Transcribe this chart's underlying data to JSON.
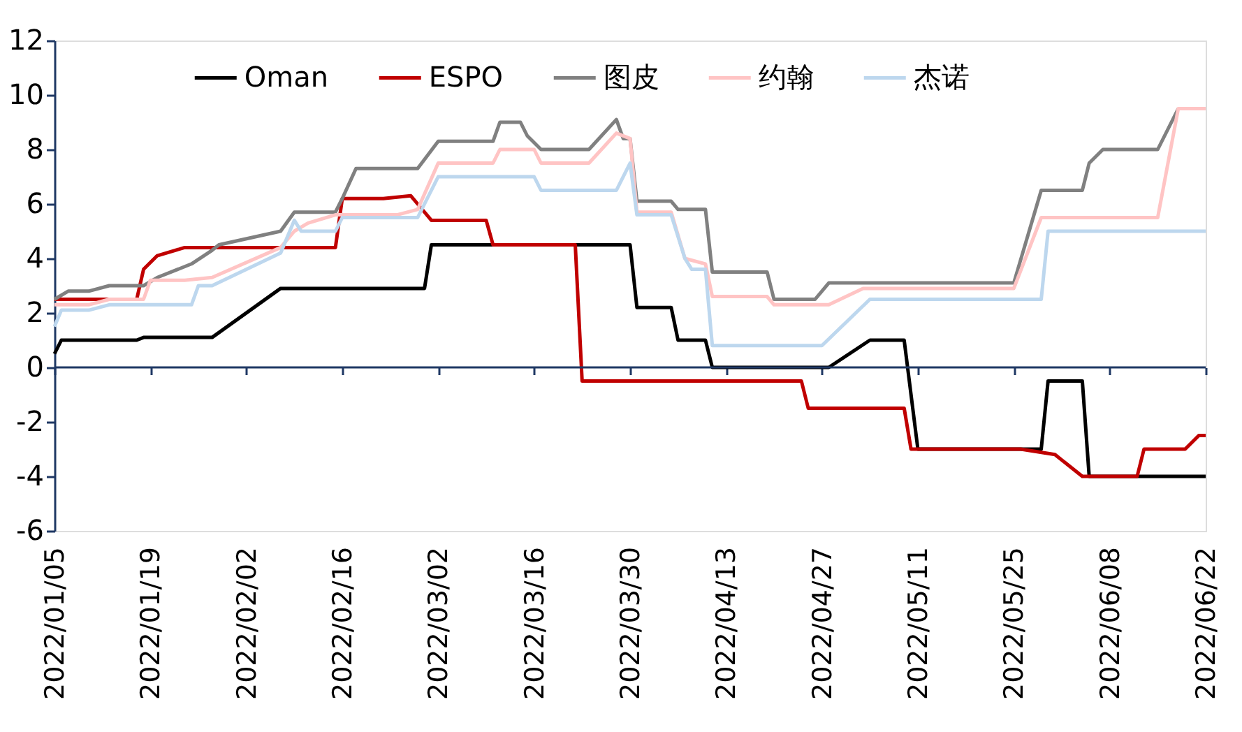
{
  "chart_data": {
    "type": "line",
    "xlim": [
      "2022-01-05",
      "2022-06-22"
    ],
    "xticks": [
      {
        "value": "2022-01-05",
        "label": "2022/01/05"
      },
      {
        "value": "2022-01-19",
        "label": "2022/01/19"
      },
      {
        "value": "2022-02-02",
        "label": "2022/02/02"
      },
      {
        "value": "2022-02-16",
        "label": "2022/02/16"
      },
      {
        "value": "2022-03-02",
        "label": "2022/03/02"
      },
      {
        "value": "2022-03-16",
        "label": "2022/03/16"
      },
      {
        "value": "2022-03-30",
        "label": "2022/03/30"
      },
      {
        "value": "2022-04-13",
        "label": "2022/04/13"
      },
      {
        "value": "2022-04-27",
        "label": "2022/04/27"
      },
      {
        "value": "2022-05-11",
        "label": "2022/05/11"
      },
      {
        "value": "2022-05-25",
        "label": "2022/05/25"
      },
      {
        "value": "2022-06-08",
        "label": "2022/06/08"
      },
      {
        "value": "2022-06-22",
        "label": "2022/06/22"
      }
    ],
    "ylim": [
      -6,
      12
    ],
    "yticks": [
      -6,
      -4,
      -2,
      0,
      2,
      4,
      6,
      8,
      10,
      12
    ],
    "ref_lines": [
      {
        "axis": "y",
        "value": 0,
        "color": "#1f3864",
        "line_style": "solid"
      }
    ],
    "grid": false,
    "legend": "top",
    "marker": "none",
    "line_style": "solid",
    "series": [
      {
        "name": "Oman",
        "color": "#000000",
        "x": [
          "2022-01-05",
          "2022-01-06",
          "2022-01-17",
          "2022-01-18",
          "2022-01-28",
          "2022-02-07",
          "2022-02-28",
          "2022-03-01",
          "2022-03-30",
          "2022-03-31",
          "2022-04-05",
          "2022-04-06",
          "2022-04-10",
          "2022-04-11",
          "2022-04-28",
          "2022-05-04",
          "2022-05-09",
          "2022-05-11",
          "2022-05-29",
          "2022-05-30",
          "2022-06-04",
          "2022-06-05",
          "2022-06-22"
        ],
        "values": [
          0.5,
          1.0,
          1.0,
          1.1,
          1.1,
          2.9,
          2.9,
          4.5,
          4.5,
          2.2,
          2.2,
          1.0,
          1.0,
          0,
          0,
          1.0,
          1.0,
          -3,
          -3,
          -0.5,
          -0.5,
          -4,
          -4
        ]
      },
      {
        "name": "ESPO",
        "color": "#c00000",
        "x": [
          "2022-01-05",
          "2022-01-17",
          "2022-01-18",
          "2022-01-20",
          "2022-01-24",
          "2022-02-15",
          "2022-02-16",
          "2022-02-22",
          "2022-02-26",
          "2022-02-27",
          "2022-03-01",
          "2022-03-09",
          "2022-03-10",
          "2022-03-22",
          "2022-03-23",
          "2022-04-24",
          "2022-04-25",
          "2022-05-09",
          "2022-05-10",
          "2022-05-26",
          "2022-05-31",
          "2022-06-04",
          "2022-06-12",
          "2022-06-13",
          "2022-06-19",
          "2022-06-21",
          "2022-06-22"
        ],
        "values": [
          2.5,
          2.5,
          3.6,
          4.1,
          4.4,
          4.4,
          6.2,
          6.2,
          6.3,
          6.0,
          5.4,
          5.4,
          4.5,
          4.5,
          -0.5,
          -0.5,
          -1.5,
          -1.5,
          -3,
          -3,
          -3.2,
          -4,
          -4,
          -3,
          -3,
          -2.5,
          -2.5
        ]
      },
      {
        "name": "图皮",
        "color": "#808080",
        "x": [
          "2022-01-05",
          "2022-01-07",
          "2022-01-10",
          "2022-01-13",
          "2022-01-18",
          "2022-01-20",
          "2022-01-25",
          "2022-01-28",
          "2022-01-29",
          "2022-02-07",
          "2022-02-09",
          "2022-02-15",
          "2022-02-16",
          "2022-02-18",
          "2022-02-27",
          "2022-03-02",
          "2022-03-10",
          "2022-03-11",
          "2022-03-14",
          "2022-03-15",
          "2022-03-17",
          "2022-03-24",
          "2022-03-28",
          "2022-03-29",
          "2022-03-30",
          "2022-03-31",
          "2022-04-05",
          "2022-04-06",
          "2022-04-10",
          "2022-04-11",
          "2022-04-19",
          "2022-04-20",
          "2022-04-26",
          "2022-04-28",
          "2022-05-25",
          "2022-05-29",
          "2022-06-04",
          "2022-06-05",
          "2022-06-07",
          "2022-06-15",
          "2022-06-18"
        ],
        "values": [
          2.5,
          2.8,
          2.8,
          3.0,
          3.0,
          3.3,
          3.8,
          4.3,
          4.5,
          5.0,
          5.7,
          5.7,
          6.2,
          7.3,
          7.3,
          8.3,
          8.3,
          9.0,
          9.0,
          8.5,
          8.0,
          8.0,
          9.1,
          8.4,
          8.4,
          6.1,
          6.1,
          5.8,
          5.8,
          3.5,
          3.5,
          2.5,
          2.5,
          3.1,
          3.1,
          6.5,
          6.5,
          7.5,
          8.0,
          8.0,
          9.5
        ]
      },
      {
        "name": "约翰",
        "color": "#ffc4c4",
        "x": [
          "2022-01-05",
          "2022-01-10",
          "2022-01-13",
          "2022-01-18",
          "2022-01-19",
          "2022-01-24",
          "2022-01-28",
          "2022-02-07",
          "2022-02-09",
          "2022-02-11",
          "2022-02-15",
          "2022-02-24",
          "2022-02-27",
          "2022-03-02",
          "2022-03-10",
          "2022-03-11",
          "2022-03-16",
          "2022-03-17",
          "2022-03-24",
          "2022-03-28",
          "2022-03-30",
          "2022-03-31",
          "2022-04-05",
          "2022-04-07",
          "2022-04-10",
          "2022-04-11",
          "2022-04-19",
          "2022-04-20",
          "2022-04-28",
          "2022-05-03",
          "2022-05-25",
          "2022-05-29",
          "2022-06-15",
          "2022-06-18",
          "2022-06-22"
        ],
        "values": [
          2.3,
          2.3,
          2.5,
          2.5,
          3.2,
          3.2,
          3.3,
          4.4,
          5.0,
          5.3,
          5.6,
          5.6,
          5.8,
          7.5,
          7.5,
          8.0,
          8.0,
          7.5,
          7.5,
          8.6,
          8.4,
          5.7,
          5.7,
          4.0,
          3.8,
          2.6,
          2.6,
          2.3,
          2.3,
          2.9,
          2.9,
          5.5,
          5.5,
          9.5,
          9.5
        ]
      },
      {
        "name": "杰诺",
        "color": "#bdd7ee",
        "x": [
          "2022-01-05",
          "2022-01-06",
          "2022-01-10",
          "2022-01-13",
          "2022-01-25",
          "2022-01-26",
          "2022-01-28",
          "2022-02-07",
          "2022-02-09",
          "2022-02-10",
          "2022-02-15",
          "2022-02-16",
          "2022-02-27",
          "2022-03-02",
          "2022-03-16",
          "2022-03-17",
          "2022-03-28",
          "2022-03-30",
          "2022-03-31",
          "2022-04-05",
          "2022-04-07",
          "2022-04-08",
          "2022-04-10",
          "2022-04-11",
          "2022-04-27",
          "2022-05-04",
          "2022-05-29",
          "2022-05-30",
          "2022-06-22"
        ],
        "values": [
          1.5,
          2.1,
          2.1,
          2.3,
          2.3,
          3.0,
          3.0,
          4.2,
          5.4,
          5.0,
          5.0,
          5.5,
          5.5,
          7.0,
          7.0,
          6.5,
          6.5,
          7.5,
          5.6,
          5.6,
          4.0,
          3.6,
          3.6,
          0.8,
          0.8,
          2.5,
          2.5,
          5.0,
          5.0
        ]
      }
    ]
  }
}
